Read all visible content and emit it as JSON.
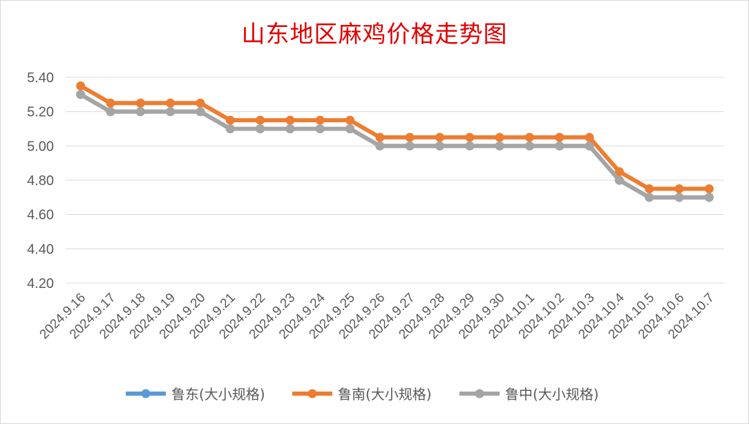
{
  "chart_data": {
    "type": "line",
    "title": "山东地区麻鸡价格走势图",
    "categories": [
      "2024.9.16",
      "2024.9.17",
      "2024.9.18",
      "2024.9.19",
      "2024.9.20",
      "2024.9.21",
      "2024.9.22",
      "2024.9.23",
      "2024.9.24",
      "2024.9.25",
      "2024.9.26",
      "2024.9.27",
      "2024.9.28",
      "2024.9.29",
      "2024.9.30",
      "2024.10.1",
      "2024.10.2",
      "2024.10.3",
      "2024.10.4",
      "2024.10.5",
      "2024.10.6",
      "2024.10.7"
    ],
    "y_ticks": [
      "4.20",
      "4.40",
      "4.60",
      "4.80",
      "5.00",
      "5.20",
      "5.40"
    ],
    "ylim": [
      4.2,
      5.4
    ],
    "grid": true,
    "legend_position": "bottom",
    "series": [
      {
        "name": "鲁东(大小规格)",
        "color": "#5b9bd5",
        "values": [
          5.3,
          5.2,
          5.2,
          5.2,
          5.2,
          5.1,
          5.1,
          5.1,
          5.1,
          5.1,
          5.0,
          5.0,
          5.0,
          5.0,
          5.0,
          5.0,
          5.0,
          5.0,
          4.8,
          4.7,
          4.7,
          4.7
        ]
      },
      {
        "name": "鲁南(大小规格)",
        "color": "#ed7d31",
        "values": [
          5.35,
          5.25,
          5.25,
          5.25,
          5.25,
          5.15,
          5.15,
          5.15,
          5.15,
          5.15,
          5.05,
          5.05,
          5.05,
          5.05,
          5.05,
          5.05,
          5.05,
          5.05,
          4.85,
          4.75,
          4.75,
          4.75
        ]
      },
      {
        "name": "鲁中(大小规格)",
        "color": "#a5a5a5",
        "values": [
          5.3,
          5.2,
          5.2,
          5.2,
          5.2,
          5.1,
          5.1,
          5.1,
          5.1,
          5.1,
          5.0,
          5.0,
          5.0,
          5.0,
          5.0,
          5.0,
          5.0,
          5.0,
          4.8,
          4.7,
          4.7,
          4.7
        ]
      }
    ]
  }
}
